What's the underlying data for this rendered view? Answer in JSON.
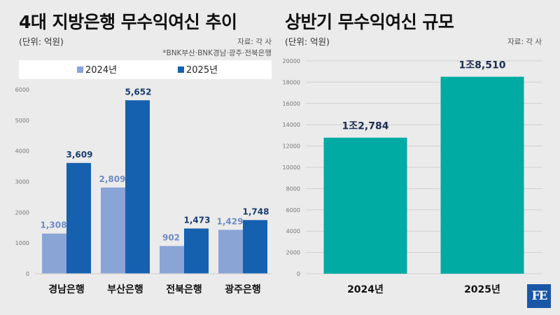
{
  "left": {
    "title": "4대 지방은행 무수익여신 추이",
    "unit": "(단위: 억원)",
    "source": "자료: 각 사",
    "note": "*BNK부산·BNK경남·광주·전북은행"
  },
  "right": {
    "title": "상반기 무수익여신 규모",
    "unit": "(단위: 억원)",
    "source": "자료: 각 사"
  },
  "colors": {
    "series_2024": "#8aa4d6",
    "series_2025": "#1660b0",
    "right_bars": "#00aba3",
    "grid": "#d0d0d0",
    "logo_bg": "#1a56a8"
  },
  "logo": {
    "text": "FE"
  },
  "chart_data": [
    {
      "type": "bar",
      "title": "4대 지방은행 무수익여신 추이",
      "ylabel": "(단위: 억원)",
      "categories": [
        "경남은행",
        "부산은행",
        "전북은행",
        "광주은행"
      ],
      "series": [
        {
          "name": "2024년",
          "values": [
            1308,
            2809,
            902,
            1429
          ],
          "labels": [
            "1,308",
            "2,809",
            "902",
            "1,429"
          ]
        },
        {
          "name": "2025년",
          "values": [
            3609,
            5652,
            1473,
            1748
          ],
          "labels": [
            "3,609",
            "5,652",
            "1,473",
            "1,748"
          ]
        }
      ],
      "ylim": [
        0,
        6000
      ],
      "yticks": [
        0,
        1000,
        2000,
        3000,
        4000,
        5000,
        6000
      ],
      "grid": false,
      "legend": "top"
    },
    {
      "type": "bar",
      "title": "상반기 무수익여신 규모",
      "ylabel": "(단위: 억원)",
      "categories": [
        "2024년",
        "2025년"
      ],
      "values": [
        12784,
        18510
      ],
      "labels": [
        "1조2,784",
        "1조8,510"
      ],
      "ylim": [
        0,
        20000
      ],
      "yticks": [
        0,
        2000,
        4000,
        6000,
        8000,
        10000,
        12000,
        14000,
        16000,
        18000,
        20000
      ],
      "grid": true,
      "legend": "none"
    }
  ]
}
